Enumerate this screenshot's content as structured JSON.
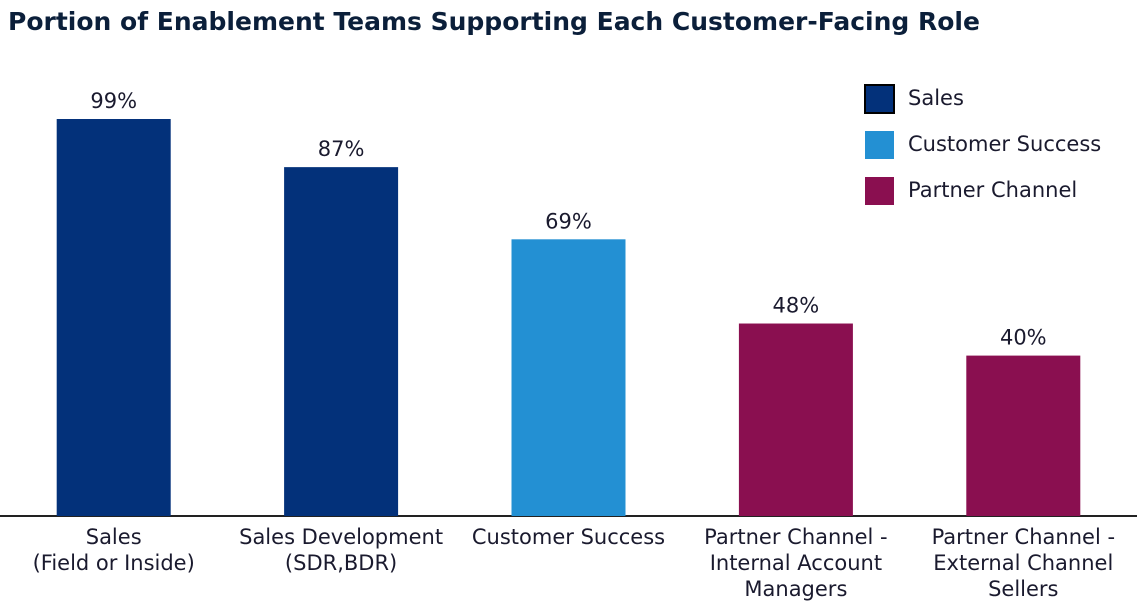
{
  "chart_data": {
    "type": "bar",
    "title": "Portion of Enablement Teams Supporting Each Customer-Facing Role",
    "categories": [
      [
        "Sales",
        "(Field or Inside)"
      ],
      [
        "Sales Development",
        "(SDR,BDR)"
      ],
      [
        "Customer Success"
      ],
      [
        "Partner Channel -",
        "Internal Account",
        "Managers"
      ],
      [
        "Partner Channel -",
        "External Channel",
        "Sellers"
      ]
    ],
    "series": [
      {
        "name": "Sales",
        "color": "#03317a",
        "values": [
          99,
          87,
          null,
          null,
          null
        ],
        "value_labels": [
          "99%",
          "87%",
          null,
          null,
          null
        ]
      },
      {
        "name": "Customer Success",
        "color": "#2390d3",
        "values": [
          null,
          null,
          69,
          null,
          null
        ],
        "value_labels": [
          null,
          null,
          "69%",
          null,
          null
        ]
      },
      {
        "name": "Partner Channel",
        "color": "#8a0f50",
        "values": [
          null,
          null,
          null,
          48,
          40
        ],
        "value_labels": [
          null,
          null,
          null,
          "48%",
          "40%"
        ]
      }
    ],
    "legend": "top-right"
  }
}
